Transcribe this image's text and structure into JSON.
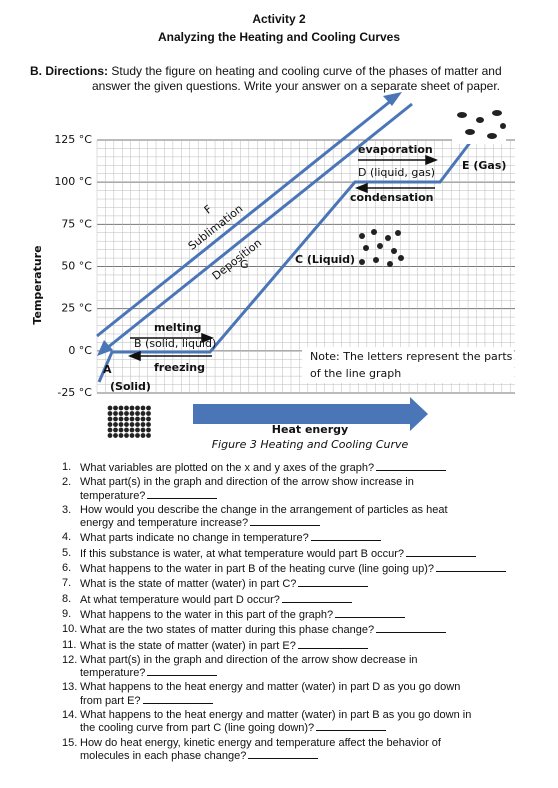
{
  "header": {
    "activity": "Activity 2",
    "title": "Analyzing the Heating and Cooling Curves"
  },
  "directions": {
    "label": "B. Directions:",
    "lines": [
      "Study the figure on heating and cooling curve of the phases of matter and",
      "answer the given questions. Write your answer on a separate sheet of paper."
    ]
  },
  "figure": {
    "y_axis_label": "Temperature",
    "y_ticks": [
      "125 °C",
      "100 °C",
      "75 °C",
      "50 °C",
      "25 °C",
      "0 °C",
      "-25 °C"
    ],
    "labels": {
      "evaporation": "evaporation",
      "d": "D (liquid, gas)",
      "condensation": "condensation",
      "e": "E (Gas)",
      "f": "F",
      "sublimation": "Sublimation",
      "deposition": "Deposition",
      "g": "G",
      "c": "C (Liquid)",
      "melting": "melting",
      "b": "B (solid, liquid)",
      "freezing": "freezing",
      "a": "A",
      "solid": "(Solid)"
    },
    "note": [
      "Note: The letters represent the parts",
      "of the line graph"
    ],
    "x_axis_label": "Heat energy",
    "caption": "Figure 3 Heating and Cooling Curve"
  },
  "questions": [
    {
      "number": "1.",
      "lines": [
        "What variables are plotted on the x and y axes of the graph?"
      ]
    },
    {
      "number": "2.",
      "lines": [
        "What part(s) in the graph and direction of the arrow show increase in",
        "temperature?"
      ]
    },
    {
      "number": "3.",
      "lines": [
        "How would you describe the change in the arrangement of particles as heat",
        "energy and temperature increase?"
      ]
    },
    {
      "number": "4.",
      "lines": [
        "What parts indicate no change in temperature?"
      ]
    },
    {
      "number": "5.",
      "lines": [
        "If this substance is water, at what temperature would part B occur?"
      ]
    },
    {
      "number": "6.",
      "lines": [
        "What happens to the water in part B of the heating curve (line going up)?"
      ]
    },
    {
      "number": "7.",
      "lines": [
        "What is the state of matter (water) in part C?"
      ]
    },
    {
      "number": "8.",
      "lines": [
        "At what temperature would part D occur?"
      ]
    },
    {
      "number": "9.",
      "lines": [
        "What happens to the water in this part of the graph?"
      ]
    },
    {
      "number": "10.",
      "lines": [
        "What are the two states of matter during this phase change?"
      ]
    },
    {
      "number": "11.",
      "lines": [
        "What is the state of matter (water) in part E?"
      ]
    },
    {
      "number": "12.",
      "lines": [
        "What part(s) in the graph and direction of the arrow show decrease in",
        "temperature?"
      ]
    },
    {
      "number": "13.",
      "lines": [
        "What happens to the heat energy and matter (water) in part D as you go down",
        "from part E?"
      ]
    },
    {
      "number": "14.",
      "lines": [
        "What happens to the heat energy and matter (water) in part B as you go down in",
        "the cooling curve from part C (line going down)?"
      ]
    },
    {
      "number": "15.",
      "lines": [
        "How do heat energy, kinetic energy and temperature affect the behavior of",
        "molecules in each phase change?"
      ]
    }
  ]
}
